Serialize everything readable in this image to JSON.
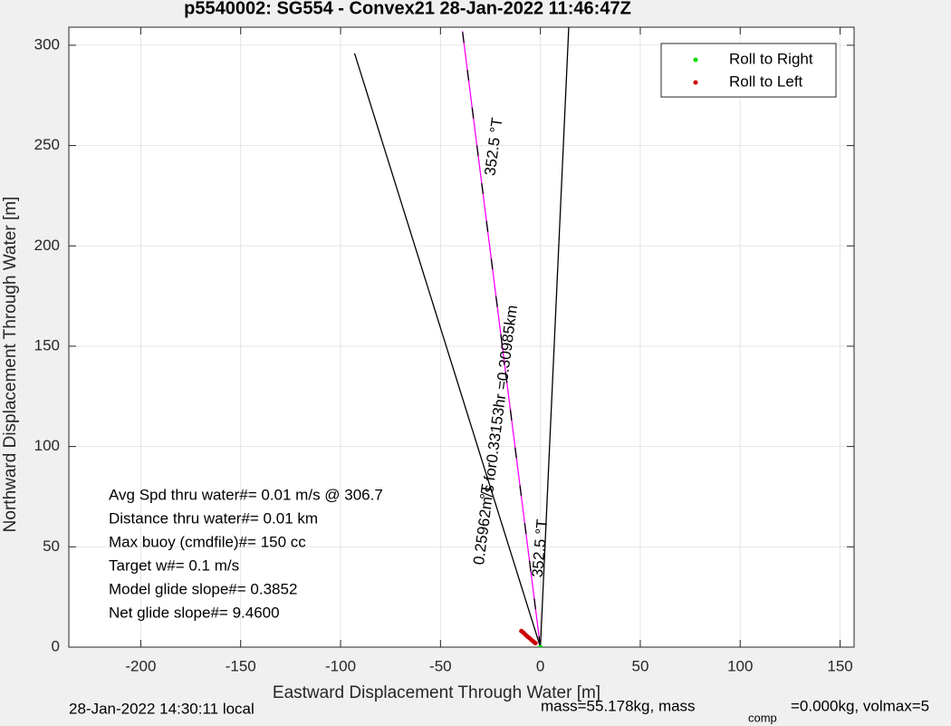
{
  "chart_data": {
    "type": "line",
    "title": "p5540002: SG554 - Convex21 28-Jan-2022 11:46:47Z",
    "x_label": "Eastward Displacement Through Water [m]",
    "y_label": "Northward Displacement Through Water [m]",
    "xlim": [
      -236,
      157
    ],
    "ylim": [
      0,
      309
    ],
    "xticks": [
      -200,
      -150,
      -100,
      -50,
      0,
      50,
      100,
      150
    ],
    "yticks": [
      0,
      50,
      100,
      150,
      200,
      250,
      300
    ],
    "grid": true,
    "legend": "upper right",
    "series": [
      {
        "mode": "line",
        "color": "#000000",
        "x": [
          0,
          -93
        ],
        "values": [
          0,
          296
        ]
      },
      {
        "mode": "line",
        "color": "#000000",
        "x": [
          0,
          14.2
        ],
        "values": [
          0,
          309
        ]
      },
      {
        "mode": "dashed",
        "color": "#ff00ff",
        "x": [
          0,
          -39
        ],
        "values": [
          0,
          307
        ]
      },
      {
        "name": "Roll to Left",
        "mode": "markers",
        "color": "#cc0000",
        "x": [
          -9.5,
          -8.5,
          -7.5,
          -6.5,
          -5.5,
          -4.5,
          -3.5,
          -2.5
        ],
        "values": [
          8,
          7.2,
          6.2,
          5.3,
          4.5,
          3.6,
          2.8,
          2
        ]
      },
      {
        "name": "Roll to Right",
        "mode": "markers",
        "color": "#00dd00",
        "x": [
          0
        ],
        "values": [
          0
        ]
      }
    ],
    "annotations": [
      "352.5 °T",
      "0.25962m/s for0.33153hr =0.30985km",
      "352.5 °T",
      "°T"
    ],
    "stats": [
      "Avg Spd thru water#=  0.01 m/s @ 306.7",
      "Distance thru water#=  0.01 km",
      "Max buoy (cmdfile)#= 150 cc",
      "Target w#= 0.1 m/s",
      "Model glide slope#= 0.3852",
      "Net glide slope#= 9.4600"
    ]
  },
  "footer": {
    "local_time": "28-Jan-2022 14:30:11 local",
    "mass": "mass=55.178kg, mass",
    "mass_sub": "comp",
    "mass_rest": "=0.000kg, volmax=5"
  }
}
